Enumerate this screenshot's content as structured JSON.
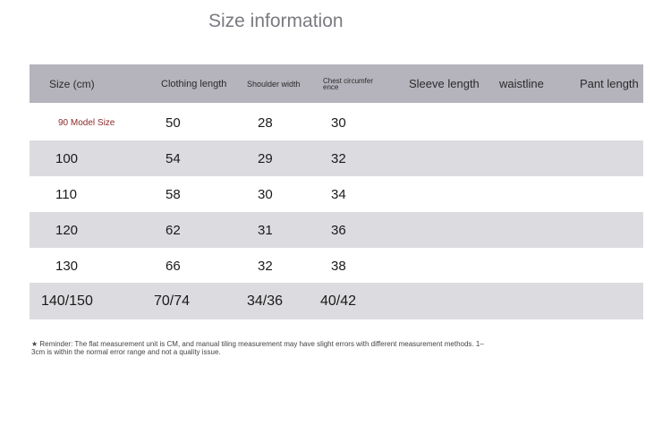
{
  "title": "Size information",
  "headers": [
    "Size (cm)",
    "Clothing length",
    "Shoulder width",
    "Chest circumference",
    "Sleeve length",
    "waistline",
    "Pant length"
  ],
  "rows": [
    {
      "size": "90 Model Size",
      "clothing_length": "50",
      "shoulder_width": "28",
      "chest": "30"
    },
    {
      "size": "100",
      "clothing_length": "54",
      "shoulder_width": "29",
      "chest": "32"
    },
    {
      "size": "110",
      "clothing_length": "58",
      "shoulder_width": "30",
      "chest": "34"
    },
    {
      "size": "120",
      "clothing_length": "62",
      "shoulder_width": "31",
      "chest": "36"
    },
    {
      "size": "130",
      "clothing_length": "66",
      "shoulder_width": "32",
      "chest": "38"
    },
    {
      "size": "140/150",
      "clothing_length": "70/74",
      "shoulder_width": "34/36",
      "chest": "40/42"
    }
  ],
  "reminder": "★ Reminder: The flat measurement unit is CM, and manual tiling measurement may have slight errors with different measurement methods. 1–3cm is within the normal error range and not a quality issue.",
  "colors": {
    "header_bg": "#b5b4bc",
    "stripe_bg": "#dcdce0",
    "model_size_text": "#8b2a2a"
  }
}
